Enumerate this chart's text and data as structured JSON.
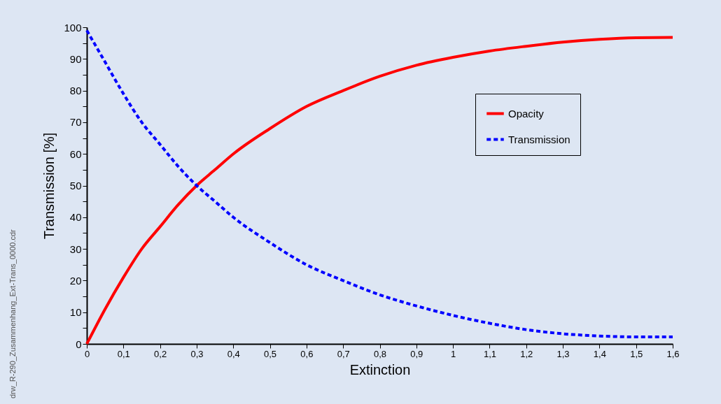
{
  "chart_data": {
    "type": "line",
    "xlabel": "Extinction",
    "ylabel": "Transmission [%]",
    "x": [
      0,
      0.05,
      0.1,
      0.15,
      0.2,
      0.25,
      0.3,
      0.35,
      0.4,
      0.5,
      0.6,
      0.7,
      0.8,
      0.9,
      1.0,
      1.1,
      1.2,
      1.3,
      1.4,
      1.5,
      1.6
    ],
    "series": [
      {
        "name": "Opacity",
        "color": "#ff0000",
        "line_style": "solid",
        "values": [
          0,
          11,
          21,
          30,
          37,
          44,
          50,
          55,
          60,
          68,
          75,
          80,
          84.5,
          88,
          90.5,
          92.5,
          94,
          95.3,
          96.2,
          96.7,
          96.8
        ]
      },
      {
        "name": "Transmission",
        "color": "#0000ff",
        "line_style": "dashed",
        "values": [
          99,
          89,
          79,
          70,
          63,
          56,
          50,
          45,
          40,
          32,
          25,
          20,
          15.5,
          12,
          9,
          6.5,
          4.5,
          3.2,
          2.5,
          2.2,
          2.2
        ]
      }
    ],
    "xlim": [
      0,
      1.6
    ],
    "xticks": [
      0,
      {
        "value": 0.1,
        "label": "0,1"
      },
      {
        "value": 0.2,
        "label": "0,2"
      },
      {
        "value": 0.3,
        "label": "0,3"
      },
      {
        "value": 0.4,
        "label": "0,4"
      },
      {
        "value": 0.5,
        "label": "0,5"
      },
      {
        "value": 0.6,
        "label": "0,6"
      },
      {
        "value": 0.7,
        "label": "0,7"
      },
      {
        "value": 0.8,
        "label": "0,8"
      },
      {
        "value": 0.9,
        "label": "0,9"
      },
      1,
      {
        "value": 1.1,
        "label": "1,1"
      },
      {
        "value": 1.2,
        "label": "1,2"
      },
      {
        "value": 1.3,
        "label": "1,3"
      },
      {
        "value": 1.4,
        "label": "1,4"
      },
      {
        "value": 1.5,
        "label": "1,5"
      },
      {
        "value": 1.6,
        "label": "1,6"
      }
    ],
    "ylim": [
      0,
      100
    ],
    "yticks": [
      0,
      {
        "value": 5,
        "label": null
      },
      10,
      {
        "value": 15,
        "label": null
      },
      20,
      {
        "value": 25,
        "label": null
      },
      30,
      {
        "value": 35,
        "label": null
      },
      40,
      {
        "value": 45,
        "label": null
      },
      50,
      {
        "value": 55,
        "label": null
      },
      60,
      {
        "value": 65,
        "label": null
      },
      70,
      {
        "value": 75,
        "label": null
      },
      80,
      {
        "value": 85,
        "label": null
      },
      90,
      {
        "value": 95,
        "label": null
      },
      100
    ],
    "grid": false,
    "legend": "top right",
    "marker": "none",
    "annotations": [
      "drw_R-290_Zusammenhang_Ext-Trans_0000.cdr"
    ]
  }
}
